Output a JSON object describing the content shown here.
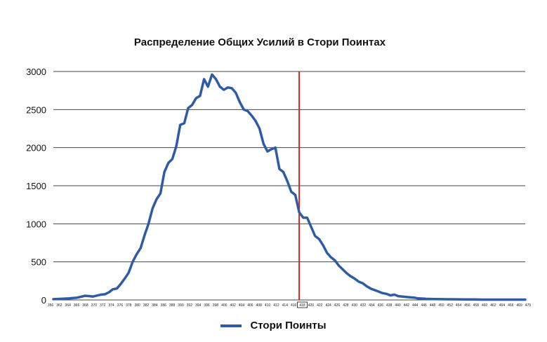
{
  "chart_data": {
    "type": "line",
    "title": "Распределение Общих Усилий в Стори Поинтах",
    "xlabel": "",
    "ylabel": "",
    "ylim": [
      0,
      3000
    ],
    "yticks": [
      0,
      500,
      1000,
      1500,
      2000,
      2500,
      3000
    ],
    "xlim": [
      356,
      475
    ],
    "xtick_labels": [
      "356",
      "362",
      "364",
      "366",
      "368",
      "370",
      "372",
      "374",
      "376",
      "378",
      "380",
      "382",
      "384",
      "386",
      "388",
      "390",
      "392",
      "394",
      "396",
      "398",
      "400",
      "402",
      "404",
      "406",
      "408",
      "410",
      "412",
      "414",
      "416",
      "418",
      "420",
      "422",
      "424",
      "426",
      "428",
      "430",
      "432",
      "434",
      "436",
      "438",
      "440",
      "442",
      "444",
      "446",
      "448",
      "450",
      "452",
      "454",
      "456",
      "458",
      "460",
      "462",
      "464",
      "466",
      "469",
      "475"
    ],
    "highlighted_tick": "418",
    "marker_line_x": 418,
    "grid": "horizontal",
    "legend_position": "bottom",
    "colors": {
      "series": "#2e5ba8",
      "marker_line": "#e0201c",
      "grid": "#444444"
    },
    "series": [
      {
        "name": "Стори Поинты",
        "x": [
          356,
          358,
          360,
          362,
          364,
          366,
          368,
          369,
          370,
          371,
          372,
          373,
          374,
          375,
          376,
          377,
          378,
          379,
          380,
          381,
          382,
          383,
          384,
          385,
          386,
          387,
          388,
          389,
          390,
          391,
          392,
          393,
          394,
          395,
          396,
          397,
          398,
          399,
          400,
          401,
          402,
          403,
          404,
          405,
          406,
          407,
          408,
          409,
          410,
          411,
          412,
          413,
          414,
          415,
          416,
          417,
          418,
          419,
          420,
          421,
          422,
          423,
          424,
          425,
          426,
          427,
          428,
          429,
          430,
          431,
          432,
          433,
          434,
          435,
          436,
          437,
          438,
          439,
          440,
          441,
          442,
          443,
          444,
          445,
          446,
          447,
          448,
          449,
          450,
          452,
          454,
          456,
          458,
          460,
          462,
          464,
          466,
          469,
          475
        ],
        "values": [
          10,
          15,
          20,
          30,
          55,
          45,
          70,
          75,
          100,
          140,
          150,
          210,
          280,
          360,
          500,
          600,
          680,
          850,
          1000,
          1200,
          1320,
          1400,
          1680,
          1800,
          1850,
          2020,
          2300,
          2320,
          2520,
          2560,
          2650,
          2680,
          2900,
          2800,
          2960,
          2900,
          2800,
          2760,
          2790,
          2780,
          2720,
          2600,
          2500,
          2480,
          2420,
          2350,
          2250,
          2050,
          1950,
          1980,
          2000,
          1720,
          1680,
          1560,
          1420,
          1380,
          1150,
          1080,
          1080,
          960,
          840,
          800,
          720,
          620,
          560,
          520,
          450,
          400,
          350,
          310,
          280,
          240,
          220,
          180,
          150,
          130,
          110,
          90,
          80,
          60,
          70,
          50,
          45,
          40,
          35,
          30,
          20,
          18,
          15,
          12,
          10,
          9,
          8,
          7,
          6,
          5,
          5,
          5,
          5
        ]
      }
    ]
  }
}
